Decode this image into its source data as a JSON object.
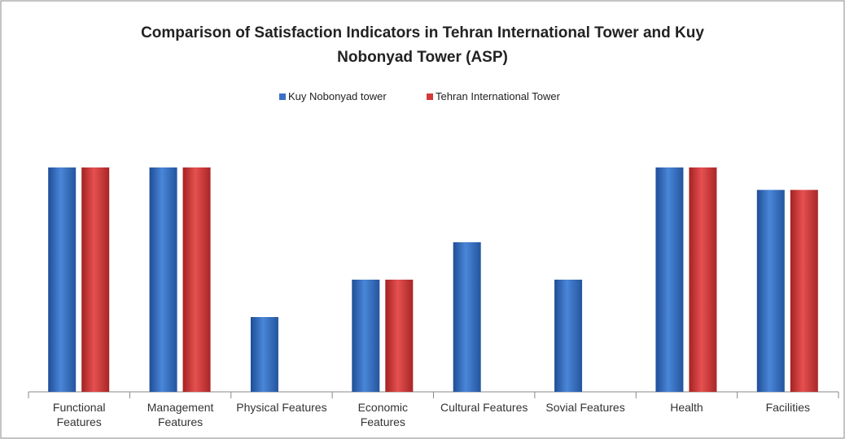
{
  "chart_data": {
    "type": "bar",
    "title": "Comparison of Satisfaction Indicators in Tehran International Tower and Kuy Nobonyad Tower (ASP)",
    "categories": [
      "Functional Features",
      "Management Features",
      "Physical Features",
      "Economic Features",
      "Cultural Features",
      "Sovial Features",
      "Health",
      "Facilities"
    ],
    "series": [
      {
        "name": "Kuy Nobonyad tower",
        "color": "#3a70c4",
        "values": [
          6,
          6,
          2,
          3,
          4,
          3,
          6,
          5.4
        ]
      },
      {
        "name": "Tehran International Tower",
        "color": "#d33a3a",
        "values": [
          6,
          6,
          0,
          3,
          0,
          0,
          6,
          5.4
        ]
      }
    ],
    "ylim": [
      0,
      7
    ],
    "grid": false,
    "legend": "top"
  }
}
